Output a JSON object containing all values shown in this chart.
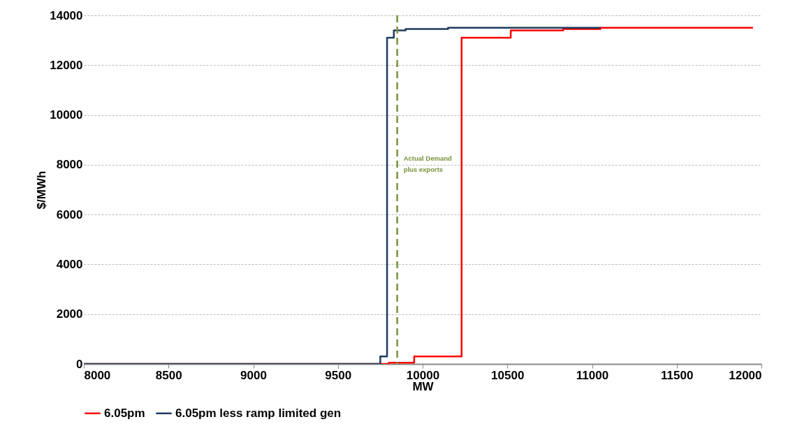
{
  "chart_data": {
    "type": "step",
    "xlabel": "MW",
    "ylabel": "$/MWh",
    "xlim": [
      8000,
      12000
    ],
    "xticks": [
      8000,
      8500,
      9000,
      9500,
      10000,
      10500,
      11000,
      11500,
      12000
    ],
    "ylim": [
      0,
      14000
    ],
    "yticks": [
      0,
      2000,
      4000,
      6000,
      8000,
      10000,
      12000,
      14000
    ],
    "grid": "y",
    "legend": "bottom",
    "series": [
      {
        "name": "6.05pm",
        "color": "#ff0000",
        "x": [
          8000,
          9800,
          9950,
          10230,
          10520,
          10830,
          11050,
          11950
        ],
        "values": [
          0,
          50,
          300,
          13100,
          13400,
          13450,
          13500,
          13500
        ]
      },
      {
        "name": "6.05pm less ramp limited gen",
        "color": "#1f3b5e",
        "x": [
          8000,
          9750,
          9790,
          9830,
          9900,
          10150,
          11050
        ],
        "values": [
          0,
          300,
          13100,
          13400,
          13450,
          13500,
          13500
        ]
      }
    ],
    "ref_lines": [
      {
        "axis": "x",
        "value": 9850,
        "label": "Actual Demand\nplus exports",
        "color": "#77933c",
        "line_style": "dashed"
      }
    ]
  }
}
